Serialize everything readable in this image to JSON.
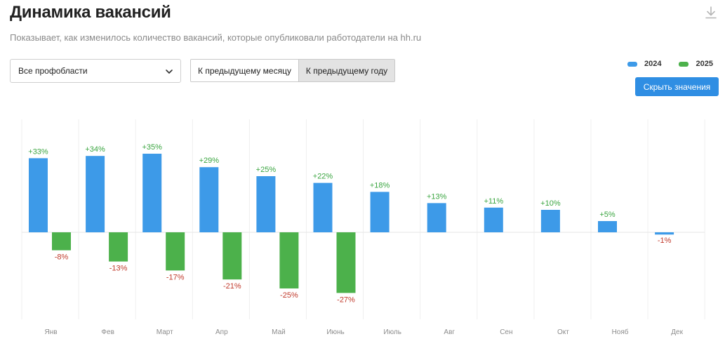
{
  "header": {
    "title": "Динамика вакансий",
    "subtitle": "Показывает, как изменилось количество вакансий, которые опубликовали работодатели на hh.ru"
  },
  "icons": {
    "download": "download-icon",
    "dropdown": "chevron-down-icon"
  },
  "filter": {
    "selected": "Все профобласти"
  },
  "toggle": {
    "options": [
      "К предыдущему месяцу",
      "К предыдущему году"
    ],
    "active_index": 1
  },
  "hide_values_label": "Скрыть значения",
  "colors": {
    "series_2024": "#3d9ae8",
    "series_2025": "#4cb14b",
    "pos_label": "#3aa540",
    "neg_label": "#c0392b",
    "button": "#2f8ee3"
  },
  "chart_data": {
    "type": "bar",
    "categories": [
      "Янв",
      "Фев",
      "Март",
      "Апр",
      "Май",
      "Июнь",
      "Июль",
      "Авг",
      "Сен",
      "Окт",
      "Нояб",
      "Дек"
    ],
    "series": [
      {
        "name": "2024",
        "values": [
          33,
          34,
          35,
          29,
          25,
          22,
          18,
          13,
          11,
          10,
          5,
          -1
        ],
        "labels": [
          "+33%",
          "+34%",
          "+35%",
          "+29%",
          "+25%",
          "+22%",
          "+18%",
          "+13%",
          "+11%",
          "+10%",
          "+5%",
          "-1%"
        ]
      },
      {
        "name": "2025",
        "values": [
          -8,
          -13,
          -17,
          -21,
          -25,
          -27,
          null,
          null,
          null,
          null,
          null,
          null
        ],
        "labels": [
          "-8%",
          "-13%",
          "-17%",
          "-21%",
          "-25%",
          "-27%",
          null,
          null,
          null,
          null,
          null,
          null
        ]
      }
    ],
    "legend_position": "top-right",
    "grid": "vertical",
    "y_axis_visible": false
  }
}
